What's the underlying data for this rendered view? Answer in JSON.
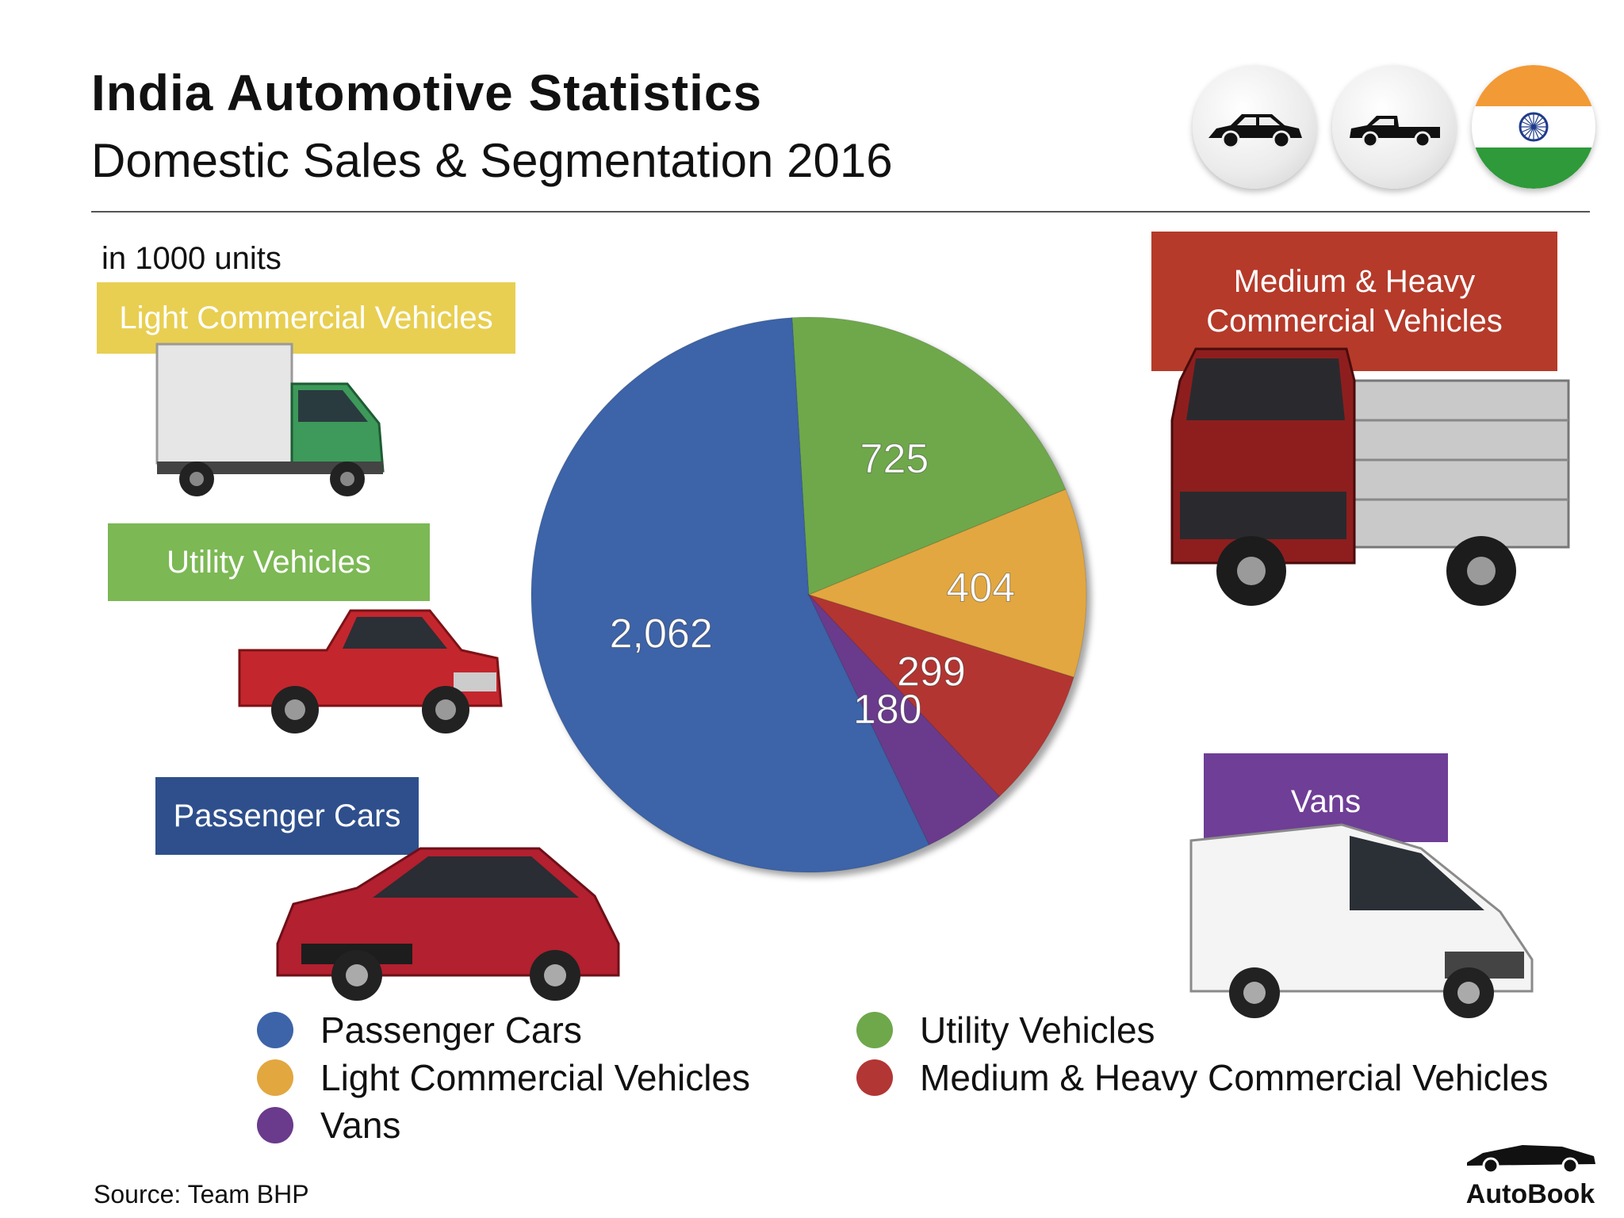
{
  "header": {
    "title": "India Automotive Statistics",
    "subtitle": "Domestic Sales & Segmentation 2016",
    "units_note": "in 1000 units"
  },
  "badges": [
    {
      "icon": "sedan-car-icon"
    },
    {
      "icon": "pickup-truck-icon"
    },
    {
      "icon": "india-flag-icon"
    }
  ],
  "segment_tags": {
    "lcv": {
      "label": "Light Commercial Vehicles",
      "color": "#e8cf52"
    },
    "uv": {
      "label": "Utility Vehicles",
      "color": "#7cb854"
    },
    "pc": {
      "label": "Passenger Cars",
      "color": "#2e4f8c"
    },
    "mhcv": {
      "line1": "Medium & Heavy",
      "line2": "Commercial Vehicles",
      "color": "#b53a2a"
    },
    "vans": {
      "label": "Vans",
      "color": "#6f3e96"
    }
  },
  "chart_data": {
    "type": "pie",
    "unit": "in 1000 units",
    "slices": [
      {
        "label": "Passenger Cars",
        "value": 2062,
        "display": "2,062",
        "color": "#3d64a8"
      },
      {
        "label": "Utility Vehicles",
        "value": 725,
        "display": "725",
        "color": "#6ea84b"
      },
      {
        "label": "Light Commercial Vehicles",
        "value": 404,
        "display": "404",
        "color": "#e2a73f"
      },
      {
        "label": "Medium & Heavy Commercial Vehicles",
        "value": 299,
        "display": "299",
        "color": "#b23633"
      },
      {
        "label": "Vans",
        "value": 180,
        "display": "180",
        "color": "#6a3a8c"
      }
    ]
  },
  "legend": [
    {
      "label": "Passenger Cars",
      "color": "#3d64a8"
    },
    {
      "label": "Utility Vehicles",
      "color": "#6ea84b"
    },
    {
      "label": "Light Commercial Vehicles",
      "color": "#e2a73f"
    },
    {
      "label": "Medium & Heavy Commercial Vehicles",
      "color": "#b23633"
    },
    {
      "label": "Vans",
      "color": "#6a3a8c"
    }
  ],
  "footer": {
    "source": "Source: Team BHP",
    "brand": "AutoBook"
  }
}
